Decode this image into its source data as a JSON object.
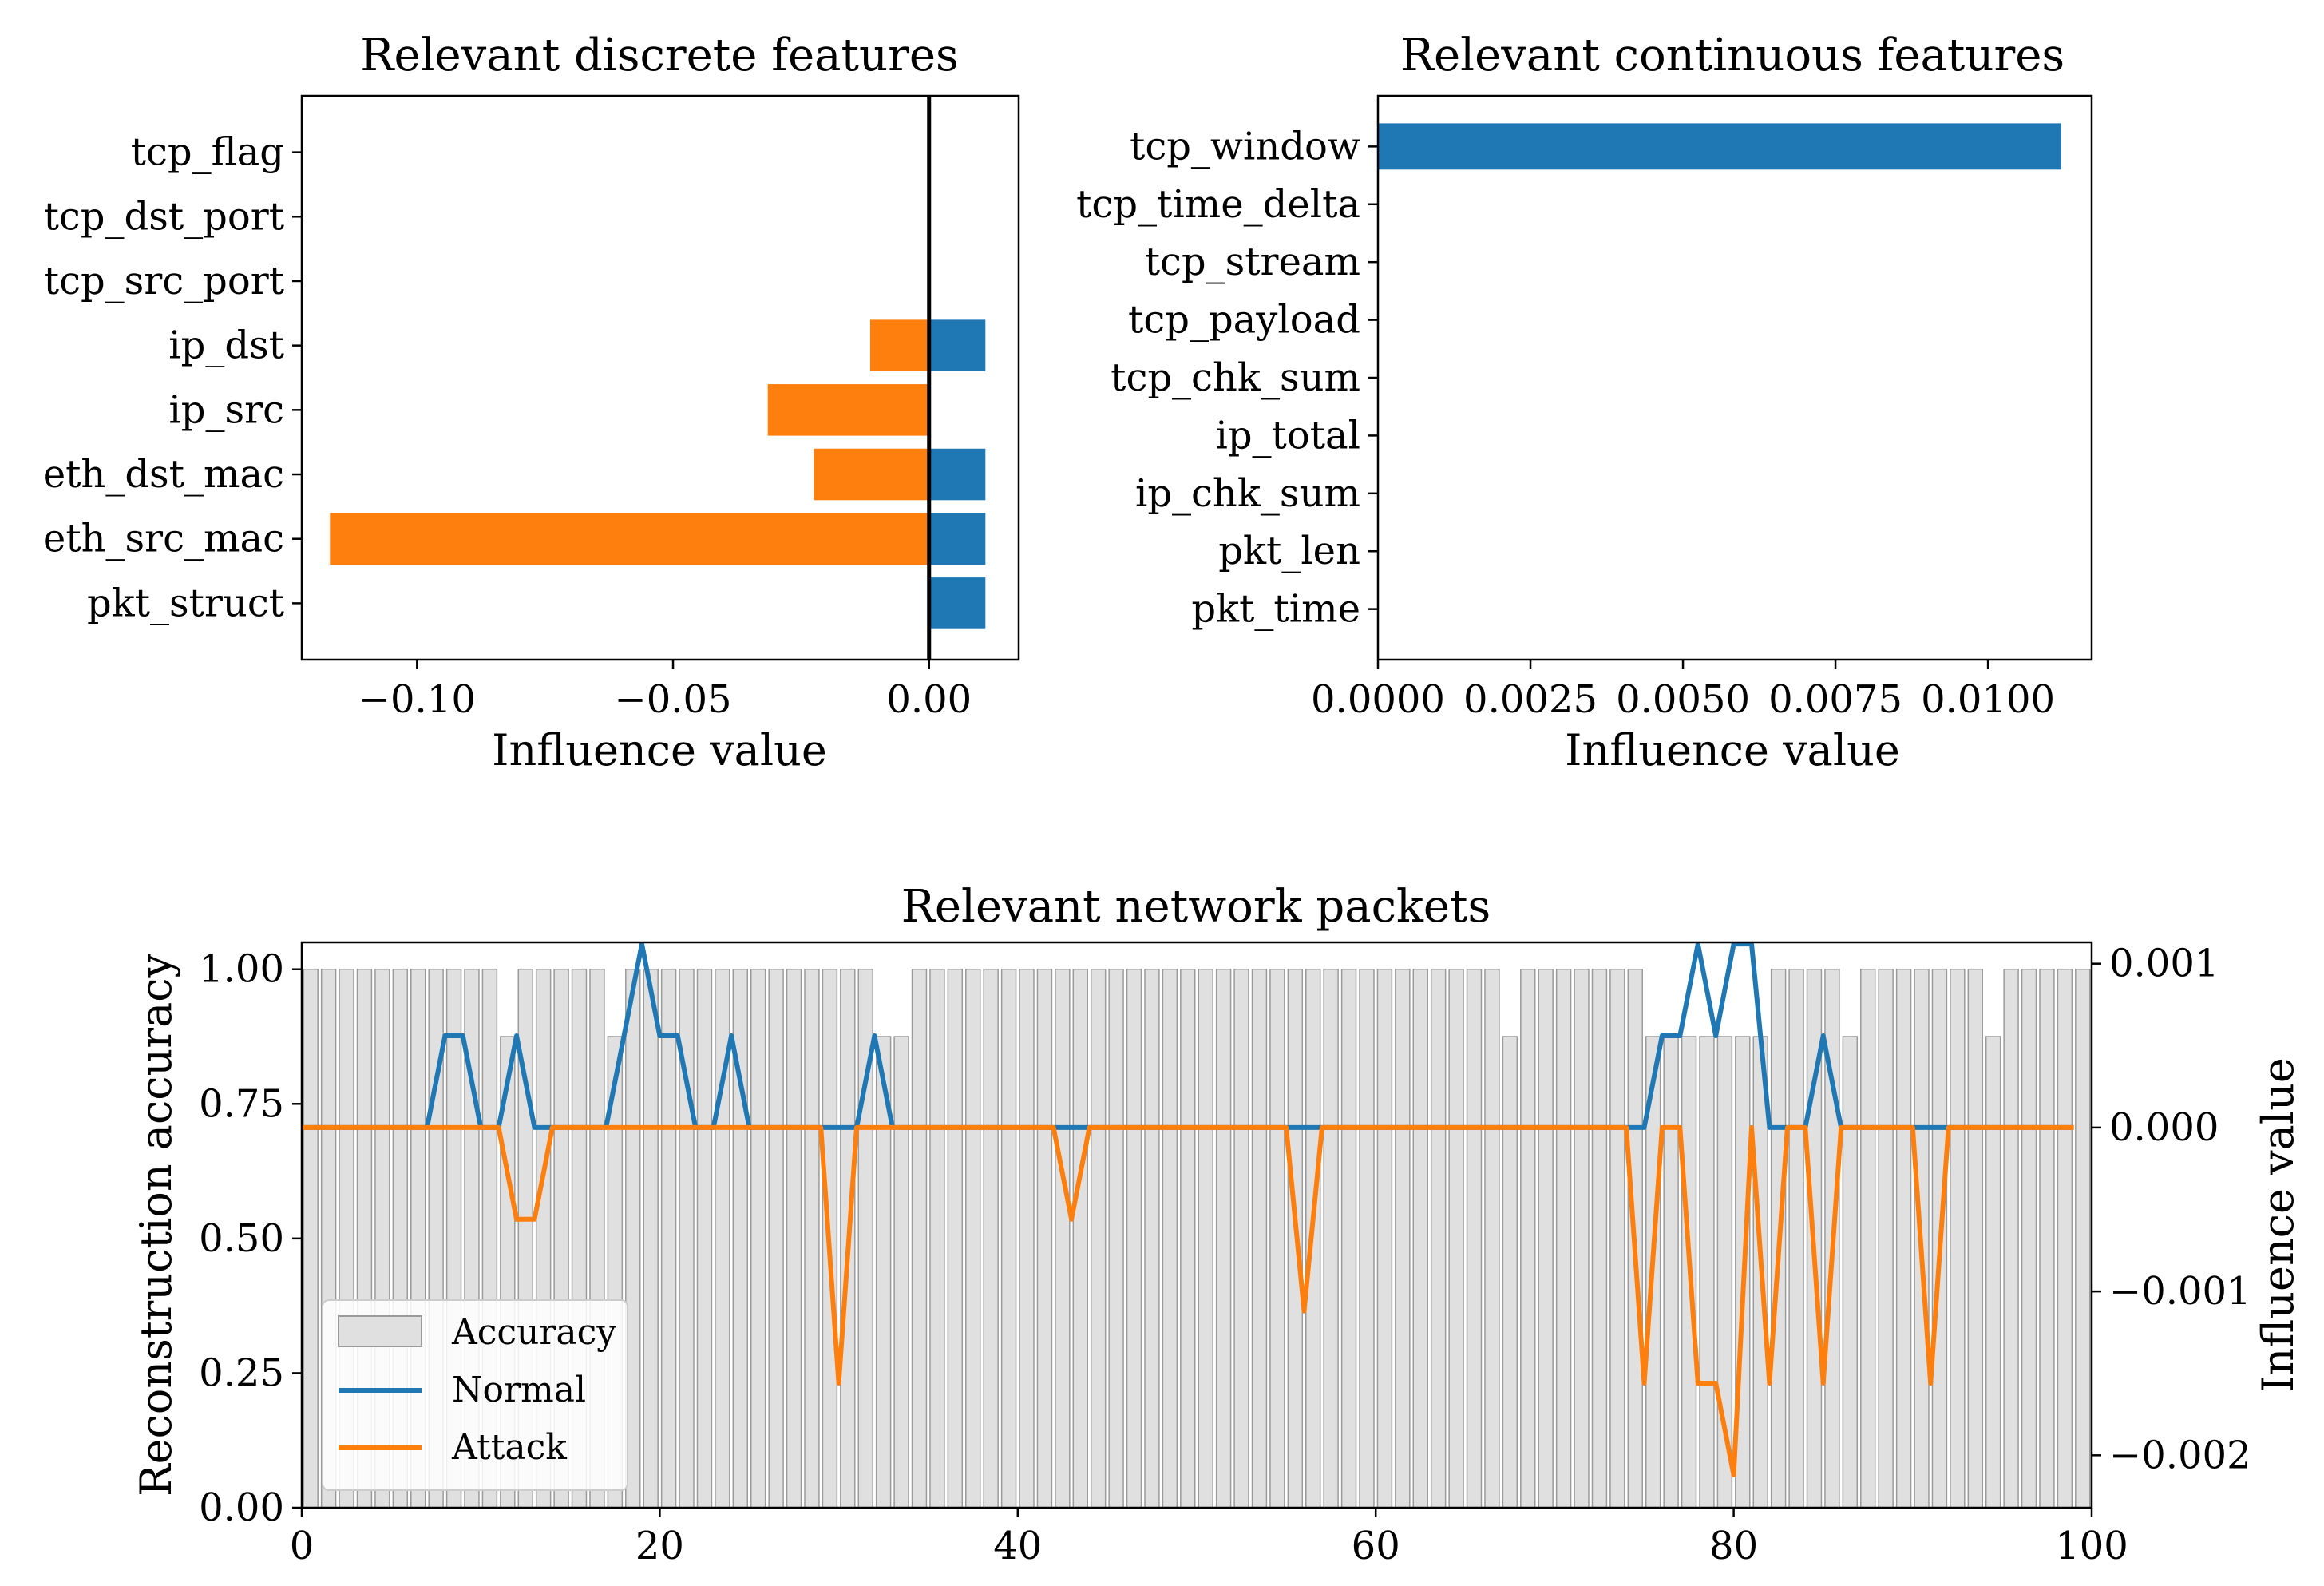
{
  "colors": {
    "normal": "#1f77b4",
    "attack": "#ff7f0e",
    "accuracy_fill": "#e0e0e0",
    "accuracy_edge": "#9a9a9a"
  },
  "chart_data": [
    {
      "id": "discrete",
      "type": "bar",
      "orientation": "horizontal",
      "title": "Relevant discrete features",
      "xlabel": "Influence value",
      "ylabel": "",
      "categories": [
        "pkt_struct",
        "eth_src_mac",
        "eth_dst_mac",
        "ip_src",
        "ip_dst",
        "tcp_src_port",
        "tcp_dst_port",
        "tcp_flag"
      ],
      "series": [
        {
          "name": "Attack",
          "color": "attack",
          "values": [
            0,
            -0.117,
            -0.0225,
            -0.0315,
            -0.0115,
            0,
            0,
            0
          ]
        },
        {
          "name": "Normal",
          "color": "normal",
          "values": [
            0.011,
            0.011,
            0.011,
            0,
            0.011,
            0,
            0,
            0
          ]
        }
      ],
      "xlim": [
        -0.1225,
        0.0175
      ],
      "xticks": [
        -0.1,
        -0.05,
        0.0
      ],
      "xtick_labels": [
        "−0.10",
        "−0.05",
        "0.00"
      ],
      "zero_line": true
    },
    {
      "id": "continuous",
      "type": "bar",
      "orientation": "horizontal",
      "title": "Relevant continuous features",
      "xlabel": "Influence value",
      "ylabel": "",
      "categories": [
        "pkt_time",
        "pkt_len",
        "ip_chk_sum",
        "ip_total",
        "tcp_chk_sum",
        "tcp_payload",
        "tcp_stream",
        "tcp_time_delta",
        "tcp_window"
      ],
      "series": [
        {
          "name": "Normal",
          "color": "normal",
          "values": [
            0,
            0,
            0,
            0,
            0,
            0,
            0,
            0,
            0.0112
          ]
        }
      ],
      "xlim": [
        0,
        0.0117
      ],
      "xticks": [
        0.0,
        0.0025,
        0.005,
        0.0075,
        0.01
      ],
      "xtick_labels": [
        "0.0000",
        "0.0025",
        "0.0050",
        "0.0075",
        "0.0100"
      ]
    },
    {
      "id": "packets",
      "type": "bar+line",
      "title": "Relevant network packets",
      "xlabel": "",
      "ylabel": "Reconstruction accuracy",
      "y2label": "Influence value",
      "xlim": [
        0,
        100
      ],
      "ylim": [
        0,
        1.05
      ],
      "y2lim": [
        -0.00232,
        0.00113
      ],
      "xticks": [
        0,
        20,
        40,
        60,
        80,
        100
      ],
      "yticks": [
        0.0,
        0.25,
        0.5,
        0.75,
        1.0
      ],
      "ytick_labels": [
        "0.00",
        "0.25",
        "0.50",
        "0.75",
        "1.00"
      ],
      "y2ticks": [
        0.001,
        0.0,
        -0.001,
        -0.002
      ],
      "y2tick_labels": [
        "0.001",
        "0.000",
        "−0.001",
        "−0.002"
      ],
      "legend": [
        "Accuracy",
        "Normal",
        "Attack"
      ],
      "legend_position": "lower-left",
      "accuracy": [
        1,
        1,
        1,
        1,
        1,
        1,
        1,
        1,
        1,
        1,
        1,
        0.875,
        1,
        1,
        1,
        1,
        1,
        0.875,
        1,
        1,
        1,
        1,
        1,
        1,
        1,
        1,
        1,
        1,
        1,
        1,
        1,
        1,
        0.875,
        0.875,
        1,
        1,
        1,
        1,
        1,
        1,
        1,
        1,
        1,
        1,
        1,
        1,
        1,
        1,
        1,
        1,
        1,
        1,
        1,
        1,
        1,
        1,
        1,
        1,
        1,
        1,
        1,
        1,
        1,
        1,
        1,
        1,
        1,
        0.875,
        1,
        1,
        1,
        1,
        1,
        1,
        1,
        0.875,
        0.875,
        0.875,
        0.875,
        0.875,
        0.875,
        0.875,
        1,
        1,
        1,
        1,
        0.875,
        1,
        1,
        1,
        1,
        1,
        1,
        1,
        0.875,
        1,
        1,
        1,
        1,
        1
      ],
      "normal": [
        0,
        0,
        0,
        0,
        0,
        0,
        0,
        0,
        0.00056,
        0.00056,
        0,
        0,
        0.00056,
        0,
        0,
        0,
        0,
        0,
        0.00056,
        0.00112,
        0.00056,
        0.00056,
        0,
        0,
        0.00056,
        0,
        0,
        0,
        0,
        0,
        0,
        0,
        0.00056,
        0,
        0,
        0,
        0,
        0,
        0,
        0,
        0,
        0,
        0,
        0,
        0,
        0,
        0,
        0,
        0,
        0,
        0,
        0,
        0,
        0,
        0,
        0,
        0,
        0,
        0,
        0,
        0,
        0,
        0,
        0,
        0,
        0,
        0,
        0,
        0,
        0,
        0,
        0,
        0,
        0,
        0,
        0,
        0.00056,
        0.00056,
        0.00112,
        0.00056,
        0.00112,
        0.00112,
        0,
        0,
        0,
        0.00056,
        0,
        0,
        0,
        0,
        0,
        0,
        0,
        0,
        0,
        0,
        0,
        0,
        0,
        0
      ],
      "attack": [
        0,
        0,
        0,
        0,
        0,
        0,
        0,
        0,
        0,
        0,
        0,
        0,
        -0.00056,
        -0.00056,
        0,
        0,
        0,
        0,
        0,
        0,
        0,
        0,
        0,
        0,
        0,
        0,
        0,
        0,
        0,
        0,
        -0.00156,
        0,
        0,
        0,
        0,
        0,
        0,
        0,
        0,
        0,
        0,
        0,
        0,
        -0.00056,
        0,
        0,
        0,
        0,
        0,
        0,
        0,
        0,
        0,
        0,
        0,
        0,
        -0.00112,
        0,
        0,
        0,
        0,
        0,
        0,
        0,
        0,
        0,
        0,
        0,
        0,
        0,
        0,
        0,
        0,
        0,
        0,
        -0.00156,
        0,
        0,
        -0.00156,
        -0.00156,
        -0.00212,
        0,
        -0.00156,
        0,
        0,
        -0.00156,
        0,
        0,
        0,
        0,
        0,
        -0.00156,
        0,
        0,
        0,
        0,
        0,
        0,
        0,
        0
      ]
    }
  ]
}
